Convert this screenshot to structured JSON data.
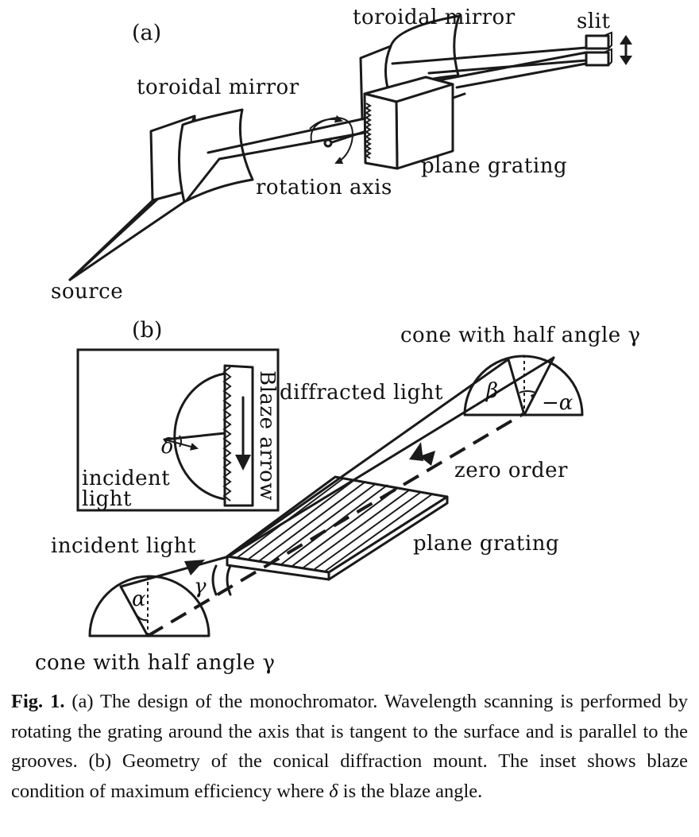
{
  "panel_a": {
    "label": "(a)",
    "toroidal_mirror_1": "toroidal mirror",
    "toroidal_mirror_2": "toroidal mirror",
    "slit": "slit",
    "rotation_axis": "rotation axis",
    "plane_grating": "plane grating",
    "source": "source"
  },
  "panel_b": {
    "label": "(b)",
    "inset": {
      "blaze_arrow": "Blaze arrow",
      "delta": "δ",
      "incident_line1": "incident",
      "incident_line2": "light"
    },
    "diffracted_light": "diffracted light",
    "cone_top": "cone with half angle γ",
    "beta": "β",
    "minus_alpha": "−α",
    "zero_order": "zero order",
    "incident_light": "incident light",
    "plane_grating": "plane grating",
    "gamma": "γ",
    "alpha": "α",
    "cone_bottom": "cone with half angle γ"
  },
  "caption": {
    "label": "Fig. 1.",
    "text_before_delta": " (a) The design of the monochromator. Wavelength scanning is performed by rotating the grating around the axis that is tangent to the surface and is parallel to the grooves. (b) Geometry of the conical diffraction mount. The inset shows blaze condition of maximum efficiency where ",
    "delta": "δ",
    "text_after_delta": " is the blaze angle."
  }
}
